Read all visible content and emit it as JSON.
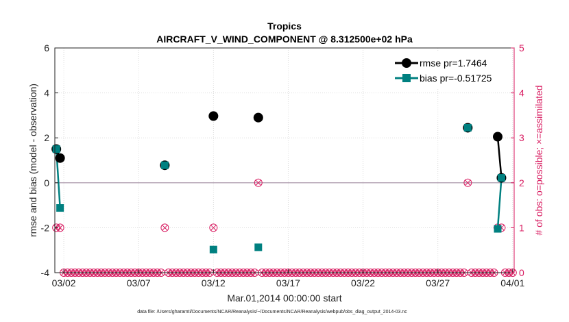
{
  "chart_data": {
    "type": "line",
    "title": "Tropics",
    "subtitle": "AIRCRAFT_V_WIND_COMPONENT @ 8.312500e+02 hPa",
    "xlabel": "Mar.01,2014 00:00:00 start",
    "ylabel": "rmse and bias (model - observation)",
    "ylabel_right": "# of obs: o=possible; ×=assimilated",
    "xlim": [
      1.4,
      32.1
    ],
    "ylim": [
      -4,
      6
    ],
    "ylim_right": [
      0,
      5
    ],
    "x_ticks": [
      2,
      7,
      12,
      17,
      22,
      27,
      32
    ],
    "x_tick_labels": [
      "03/02",
      "03/07",
      "03/12",
      "03/17",
      "03/22",
      "03/27",
      "04/01"
    ],
    "y_ticks": [
      -4,
      -2,
      0,
      2,
      4,
      6
    ],
    "y_tick_labels": [
      "-4",
      "-2",
      "0",
      "2",
      "4",
      "6"
    ],
    "y_ticks_right": [
      0,
      1,
      2,
      3,
      4,
      5
    ],
    "y_tick_labels_right": [
      "0",
      "1",
      "2",
      "3",
      "4",
      "5"
    ],
    "grid": true,
    "legend_position": "top-right",
    "series": [
      {
        "name": "rmse pr=1.7464",
        "color": "#000000",
        "marker": "circle",
        "points": [
          {
            "x": 1.5,
            "y": 1.5,
            "segment": 0
          },
          {
            "x": 1.75,
            "y": 1.1,
            "segment": 0
          },
          {
            "x": 8.75,
            "y": 0.78,
            "segment": 1
          },
          {
            "x": 12.0,
            "y": 2.97,
            "segment": 2
          },
          {
            "x": 15.0,
            "y": 2.9,
            "segment": 3
          },
          {
            "x": 29.0,
            "y": 2.45,
            "segment": 4
          },
          {
            "x": 31.0,
            "y": 2.05,
            "segment": 5
          },
          {
            "x": 31.25,
            "y": 0.22,
            "segment": 5
          }
        ]
      },
      {
        "name": "bias pr=-0.51725",
        "color": "#008080",
        "marker": "square",
        "points": [
          {
            "x": 1.5,
            "y": 1.5,
            "segment": 0
          },
          {
            "x": 1.75,
            "y": -1.12,
            "segment": 0
          },
          {
            "x": 8.75,
            "y": 0.78,
            "segment": 1
          },
          {
            "x": 12.0,
            "y": -2.97,
            "segment": 2
          },
          {
            "x": 15.0,
            "y": -2.87,
            "segment": 3
          },
          {
            "x": 29.0,
            "y": 2.45,
            "segment": 4
          },
          {
            "x": 31.0,
            "y": -2.05,
            "segment": 5
          },
          {
            "x": 31.25,
            "y": 0.22,
            "segment": 5
          }
        ]
      }
    ],
    "obs_counts": {
      "color": "#d81b60",
      "start": 1.5,
      "step": 0.25,
      "end": 32.0,
      "default_count": 0,
      "nonzero": [
        {
          "x": 1.5,
          "count": 1
        },
        {
          "x": 1.75,
          "count": 1
        },
        {
          "x": 8.75,
          "count": 1
        },
        {
          "x": 12.0,
          "count": 1
        },
        {
          "x": 15.0,
          "count": 2
        },
        {
          "x": 29.0,
          "count": 2
        },
        {
          "x": 31.0,
          "count": 1
        },
        {
          "x": 31.25,
          "count": 1
        }
      ]
    }
  },
  "footer": {
    "text": "data file: /Users/gharamti/Documents/NCAR/Reanalysis/~/Documents/NCAR/Reanalysis/webpub/obs_diag_output_2014-03.nc"
  }
}
